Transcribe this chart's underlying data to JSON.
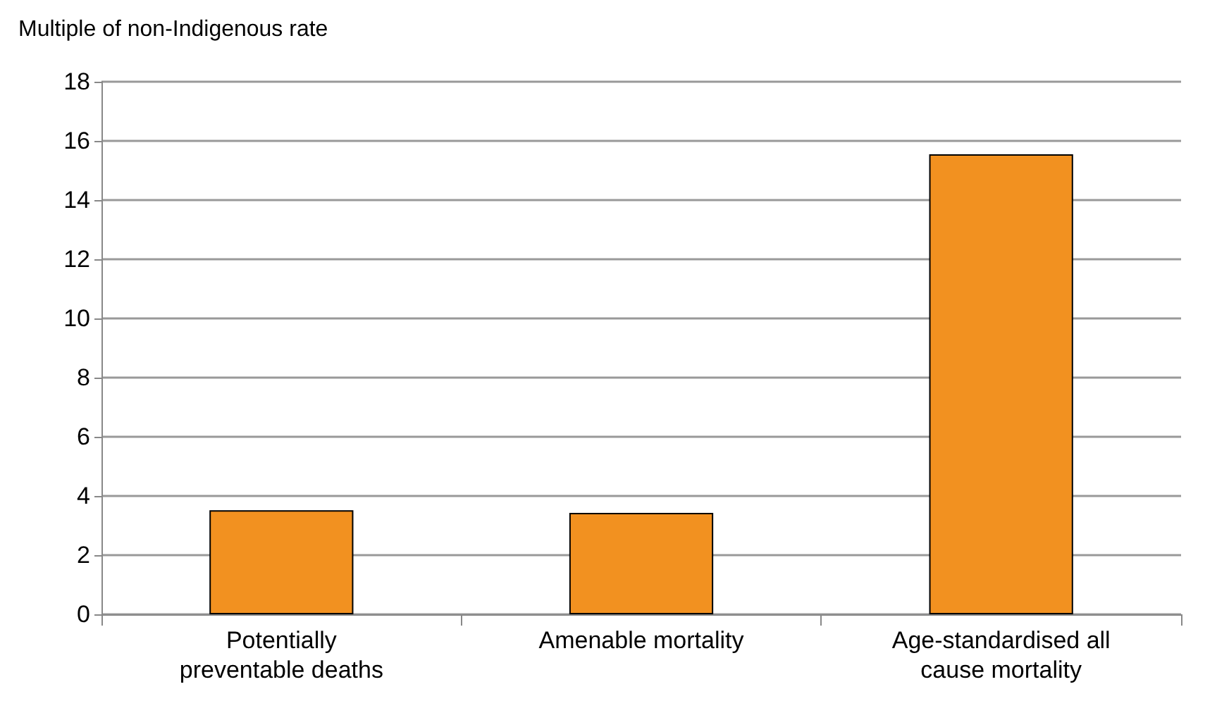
{
  "chart_data": {
    "type": "bar",
    "ylabel": "Multiple of non-Indigenous rate",
    "categories": [
      "Potentially\npreventable deaths",
      "Amenable mortality",
      "Age-standardised all\ncause mortality"
    ],
    "values": [
      3.52,
      3.43,
      15.55
    ],
    "color": "#f29120",
    "ylim": [
      0,
      18
    ],
    "yticks": [
      0,
      2,
      4,
      6,
      8,
      10,
      12,
      14,
      16,
      18
    ],
    "grid": "y"
  }
}
